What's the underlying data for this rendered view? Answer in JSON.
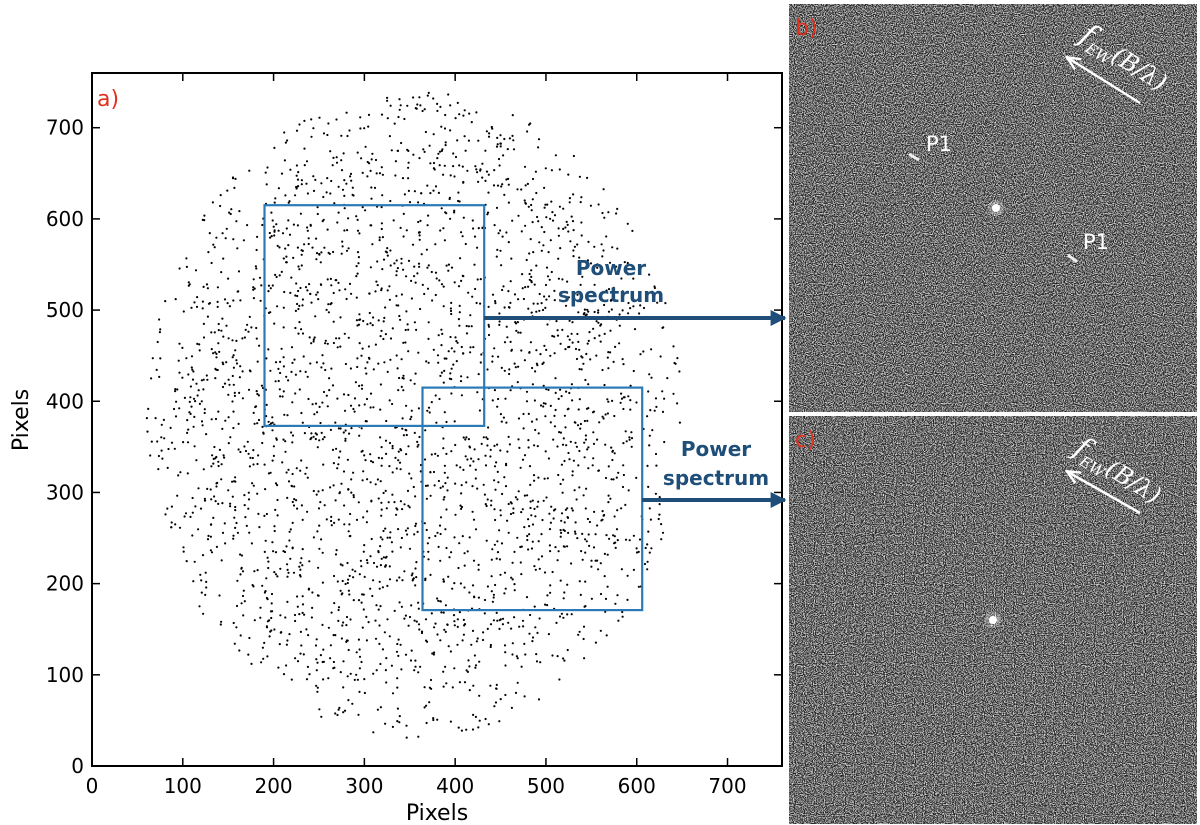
{
  "colors": {
    "panel_letter": "#e0301e",
    "box": "#2a7ab8",
    "annotation": "#1f4e79",
    "points": "#000000",
    "spectrum_bg": "#262626"
  },
  "chart_data": [
    {
      "type": "scatter",
      "panel_label": "a)",
      "xlabel": "Pixels",
      "ylabel": "Pixels",
      "xlim": [
        0,
        760
      ],
      "ylim": [
        0,
        760
      ],
      "xticks": [
        0,
        100,
        200,
        300,
        400,
        500,
        600,
        700
      ],
      "yticks": [
        0,
        100,
        200,
        300,
        400,
        500,
        600,
        700
      ],
      "grid": false,
      "points_note": "Pseudo-random field of point sources filling an approximate disk",
      "points_region": {
        "center": [
          355,
          385
        ],
        "radius": [
          295,
          355
        ],
        "count": 2800,
        "marker_size": 1.6
      },
      "regions": [
        {
          "x": [
            190,
            432
          ],
          "y": [
            373,
            615
          ]
        },
        {
          "x": [
            364,
            606
          ],
          "y": [
            171,
            415
          ]
        }
      ],
      "annotations": [
        {
          "text_lines": [
            "Power",
            "spectrum"
          ],
          "from": [
            432,
            495
          ],
          "to_panel": "b"
        },
        {
          "text_lines": [
            "Power",
            "spectrum"
          ],
          "from": [
            606,
            293
          ],
          "to_panel": "c"
        }
      ]
    },
    {
      "type": "heatmap",
      "panel_label": "b)",
      "peaks": [
        {
          "label": "P1",
          "u": 0.32,
          "v": 0.37
        },
        {
          "label": "P1",
          "u": 0.73,
          "v": 0.63
        }
      ],
      "central_peak": {
        "u": 0.515,
        "v": 0.5
      },
      "direction_label": {
        "f": "f",
        "sub": "EW",
        "arg": "(B/λ)"
      }
    },
    {
      "type": "heatmap",
      "panel_label": "c)",
      "peaks": [],
      "central_peak": {
        "u": 0.515,
        "v": 0.5
      },
      "direction_label": {
        "f": "f",
        "sub": "EW",
        "arg": "(B/λ)"
      }
    }
  ]
}
